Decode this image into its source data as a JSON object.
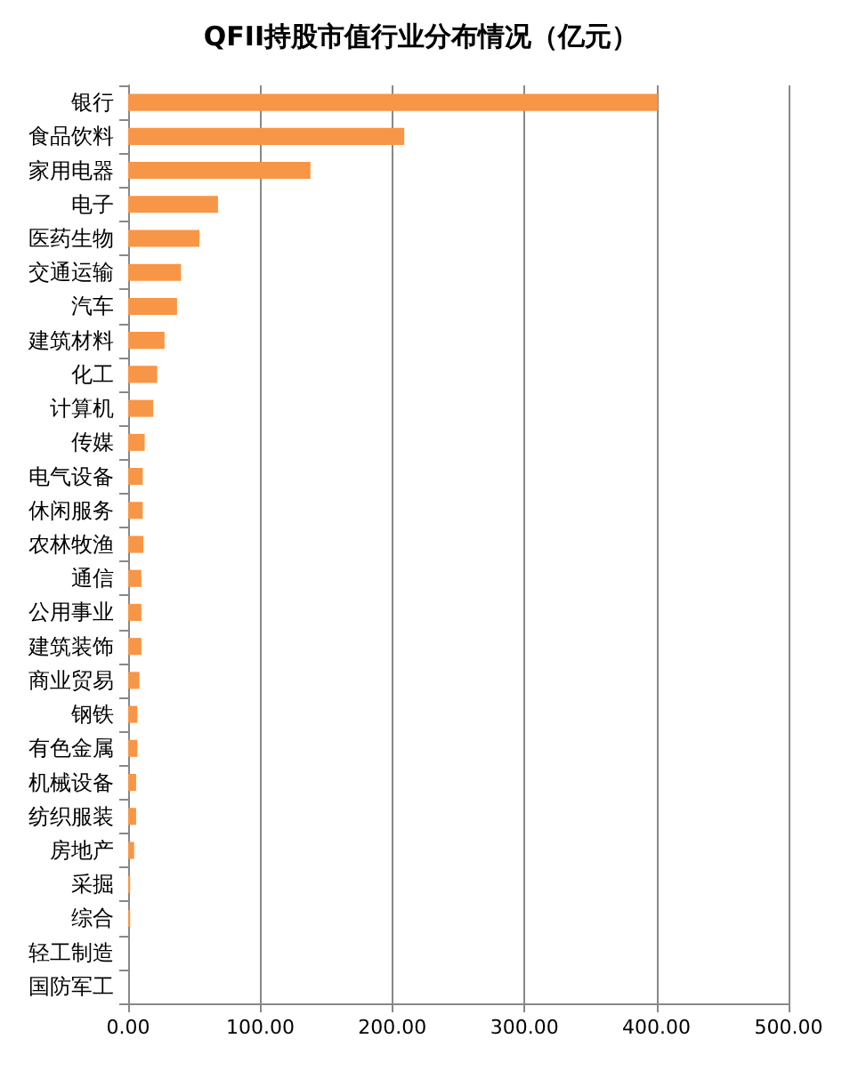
{
  "chart_data": {
    "type": "bar",
    "orientation": "horizontal",
    "title": "QFII持股市值行业分布情况（亿元）",
    "categories": [
      "银行",
      "食品饮料",
      "家用电器",
      "电子",
      "医药生物",
      "交通运输",
      "汽车",
      "建筑材料",
      "化工",
      "计算机",
      "传媒",
      "电气设备",
      "休闲服务",
      "农林牧渔",
      "通信",
      "公用事业",
      "建筑装饰",
      "商业贸易",
      "钢铁",
      "有色金属",
      "机械设备",
      "纺织服装",
      "房地产",
      "采掘",
      "综合",
      "轻工制造",
      "国防军工"
    ],
    "values": [
      401,
      209,
      138,
      68,
      54,
      40,
      37,
      27.5,
      22,
      19,
      12.5,
      11,
      11,
      11.5,
      10,
      10,
      10,
      8.5,
      7,
      7,
      6,
      6,
      4.5,
      1.5,
      1.5,
      0,
      0
    ],
    "color": "#f79646",
    "xlim": [
      0,
      500
    ],
    "xticks": [
      {
        "value": 0,
        "label": "0.00"
      },
      {
        "value": 100,
        "label": "100.00"
      },
      {
        "value": 200,
        "label": "200.00"
      },
      {
        "value": 300,
        "label": "300.00"
      },
      {
        "value": 400,
        "label": "400.00"
      },
      {
        "value": 500,
        "label": "500.00"
      }
    ],
    "grid": "x"
  }
}
